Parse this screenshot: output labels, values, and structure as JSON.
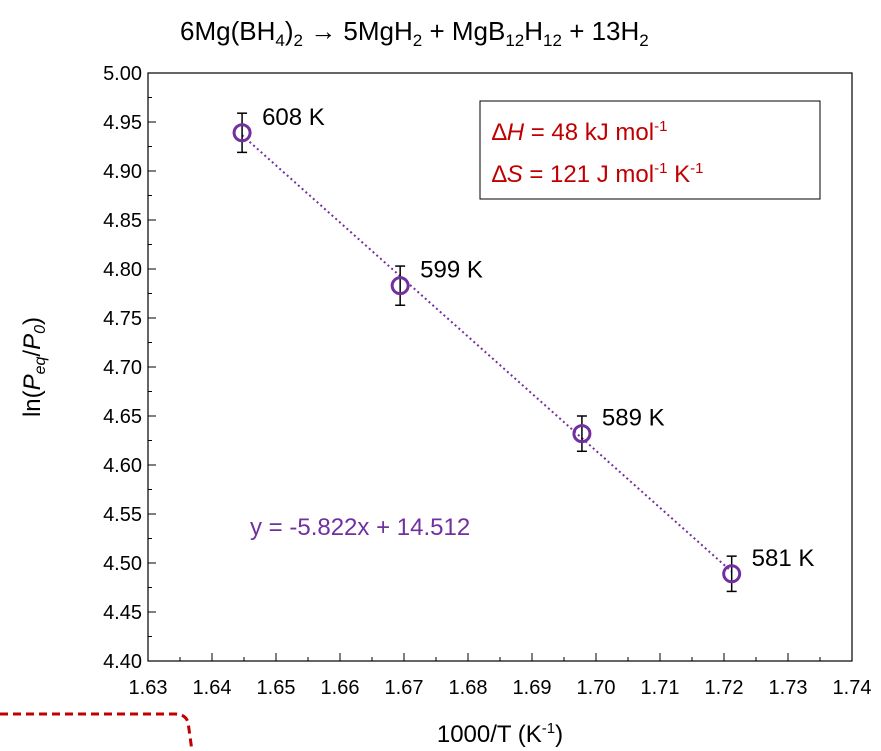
{
  "chart_data": {
    "type": "scatter",
    "title": {
      "parts": [
        "6Mg(BH",
        "4",
        ")",
        "2",
        " → 5MgH",
        "2",
        " + MgB",
        "12",
        "H",
        "12",
        " + 13H",
        "2"
      ],
      "subs": [
        false,
        true,
        false,
        true,
        false,
        true,
        false,
        true,
        false,
        true,
        false,
        true
      ]
    },
    "xlabel": {
      "main": "1000/T  (K",
      "sup": "-1",
      "end": ")"
    },
    "ylabel": {
      "pre": "ln(",
      "P1": "P",
      "sub1": "eq",
      "slash": "/",
      "P2": "P",
      "sub2": "0",
      "end": ")"
    },
    "xlim": [
      1.63,
      1.74
    ],
    "ylim": [
      4.4,
      5.0
    ],
    "xticks": [
      "1.63",
      "1.64",
      "1.65",
      "1.66",
      "1.67",
      "1.68",
      "1.69",
      "1.70",
      "1.71",
      "1.72",
      "1.73",
      "1.74"
    ],
    "yticks": [
      "4.40",
      "4.45",
      "4.50",
      "4.55",
      "4.60",
      "4.65",
      "4.70",
      "4.75",
      "4.80",
      "4.85",
      "4.90",
      "4.95",
      "5.00"
    ],
    "grid": false,
    "points": [
      {
        "x": 1.6447,
        "y": 4.939,
        "err": 0.02,
        "label": "608 K"
      },
      {
        "x": 1.6694,
        "y": 4.783,
        "err": 0.02,
        "label": "599 K"
      },
      {
        "x": 1.6978,
        "y": 4.632,
        "err": 0.018,
        "label": "589 K"
      },
      {
        "x": 1.7212,
        "y": 4.489,
        "err": 0.018,
        "label": "581 K"
      }
    ],
    "fit": {
      "slope": -5.822,
      "intercept": 14.512,
      "x_range": [
        1.6447,
        1.7212
      ],
      "equation": "y = -5.822x + 14.512"
    },
    "annotation_box": {
      "line1": {
        "sym": "∆",
        "var": "H",
        "rest": " = 48 kJ mol",
        "sup": "-1",
        "tail": ""
      },
      "line2": {
        "sym": "∆",
        "var": "S",
        "rest": " = 121 J mol",
        "sup": "-1",
        "mid": " K",
        "sup2": "-1"
      }
    },
    "colors": {
      "marker": "#7030A0",
      "fit": "#7030A0",
      "equation": "#7030A0",
      "annotation": "#C00000",
      "axis": "#000000",
      "dashed_box": "#C00000"
    }
  }
}
